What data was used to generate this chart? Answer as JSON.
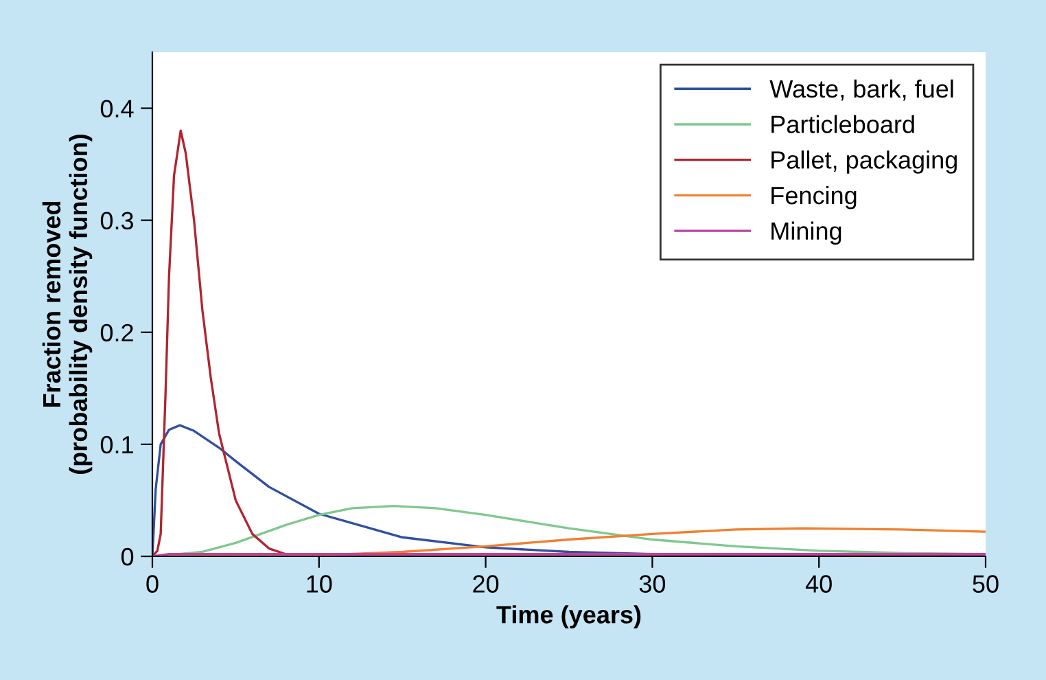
{
  "chart_data": {
    "type": "line",
    "xlabel": "Time (years)",
    "ylabel": "Fraction removed\n(probability density function)",
    "xlim": [
      0,
      50
    ],
    "xticks": [
      0,
      10,
      20,
      30,
      40,
      50
    ],
    "ylim": [
      0,
      0.45
    ],
    "yticks": [
      0,
      0.1,
      0.2,
      0.3,
      0.4
    ],
    "grid": false,
    "legend": "top right",
    "marker": "none",
    "line_style": "solid",
    "series": [
      {
        "name": "Waste, bark, fuel",
        "color": "#3050a0",
        "x": [
          0,
          0.2,
          0.5,
          1,
          1.65,
          2.5,
          4,
          5,
          7,
          10,
          15,
          20,
          25,
          30,
          40,
          50
        ],
        "values": [
          0,
          0.06,
          0.1,
          0.113,
          0.117,
          0.112,
          0.097,
          0.085,
          0.062,
          0.038,
          0.017,
          0.008,
          0.004,
          0.002,
          0.001,
          0
        ]
      },
      {
        "name": "Particleboard",
        "color": "#80c890",
        "x": [
          0,
          3,
          5,
          8,
          10,
          12,
          14.5,
          17,
          20,
          25,
          30,
          35,
          40,
          45,
          50
        ],
        "values": [
          0,
          0.004,
          0.012,
          0.028,
          0.037,
          0.043,
          0.045,
          0.043,
          0.037,
          0.025,
          0.015,
          0.009,
          0.005,
          0.003,
          0.002
        ]
      },
      {
        "name": "Pallet, packaging",
        "color": "#b02530",
        "x": [
          0,
          0.3,
          0.5,
          0.8,
          1,
          1.3,
          1.7,
          2,
          2.5,
          3,
          3.5,
          4,
          5,
          6,
          7,
          8,
          10,
          50
        ],
        "values": [
          0,
          0.005,
          0.02,
          0.15,
          0.25,
          0.34,
          0.38,
          0.36,
          0.3,
          0.22,
          0.16,
          0.11,
          0.05,
          0.02,
          0.007,
          0.002,
          0,
          0
        ]
      },
      {
        "name": "Fencing",
        "color": "#f08030",
        "x": [
          0,
          10,
          15,
          20,
          25,
          30,
          35,
          39,
          45,
          50
        ],
        "values": [
          0,
          0.001,
          0.004,
          0.009,
          0.015,
          0.02,
          0.024,
          0.025,
          0.024,
          0.022
        ]
      },
      {
        "name": "Mining",
        "color": "#c040a0",
        "x": [
          0,
          1,
          50
        ],
        "values": [
          0,
          0.002,
          0.002
        ]
      }
    ]
  }
}
